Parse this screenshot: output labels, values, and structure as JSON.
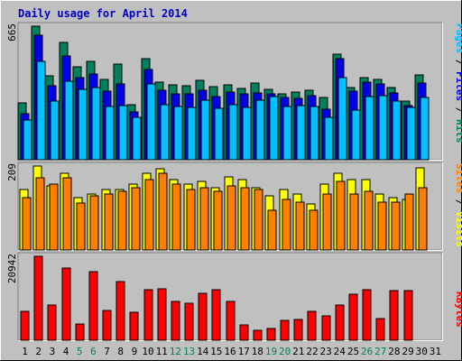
{
  "chart_data": {
    "type": "bar",
    "title": "Daily usage for April 2014",
    "categories": [
      "1",
      "2",
      "3",
      "4",
      "5",
      "6",
      "7",
      "8",
      "9",
      "10",
      "11",
      "12",
      "13",
      "14",
      "15",
      "16",
      "17",
      "18",
      "19",
      "20",
      "21",
      "22",
      "23",
      "24",
      "25",
      "26",
      "27",
      "28",
      "29",
      "30",
      "31"
    ],
    "weekend_days": [
      "5",
      "6",
      "12",
      "13",
      "19",
      "20",
      "26",
      "27"
    ],
    "colors": {
      "background": "#c0c0c0",
      "hits": "#00805c",
      "files": "#0000e6",
      "pages": "#00c0ff",
      "visits": "#ffff00",
      "sites": "#ff8000",
      "kbytes": "#ff0000",
      "title": "#0000c0",
      "weekday": "#000000",
      "weekend": "#00805c"
    },
    "panels": [
      {
        "id": "hits-files-pages",
        "ylim_label": "665",
        "ylim": [
          0,
          665
        ],
        "legend": [
          {
            "text": "Pages",
            "color": "#00c0ff"
          },
          {
            "text": " / ",
            "color": "#000000"
          },
          {
            "text": "Files",
            "color": "#0000e6"
          },
          {
            "text": " / ",
            "color": "#000000"
          },
          {
            "text": "Hits",
            "color": "#00805c"
          }
        ],
        "series": [
          {
            "name": "Hits",
            "color": "#00805c",
            "values": [
              282,
              665,
              419,
              586,
              462,
              488,
              400,
              475,
              273,
              503,
              386,
              375,
              367,
              397,
              365,
              372,
              355,
              384,
              352,
              330,
              337,
              345,
              310,
              526,
              360,
              410,
              400,
              360,
              290,
              421,
              null
            ]
          },
          {
            "name": "Files",
            "color": "#0000e6",
            "values": [
              227,
              622,
              370,
              516,
              410,
              428,
              343,
              377,
              236,
              451,
              345,
              326,
              326,
              348,
              316,
              337,
              330,
              331,
              330,
              311,
              304,
              318,
              250,
              505,
              343,
              386,
              377,
              331,
              270,
              383,
              null
            ]
          },
          {
            "name": "Pages",
            "color": "#00c0ff",
            "values": [
              197,
              490,
              292,
              390,
              352,
              361,
              263,
              269,
              212,
              378,
              276,
              266,
              259,
              298,
              257,
              274,
              259,
              298,
              315,
              263,
              270,
              265,
              210,
              410,
              248,
              316,
              320,
              292,
              260,
              310,
              null
            ]
          }
        ]
      },
      {
        "id": "visits-sites",
        "ylim_label": "209",
        "ylim": [
          0,
          209
        ],
        "legend": [
          {
            "text": "Sites",
            "color": "#ff8000"
          },
          {
            "text": " / ",
            "color": "#000000"
          },
          {
            "text": "Visits",
            "color": "#ffff00"
          }
        ],
        "series": [
          {
            "name": "Visits",
            "color": "#ffff00",
            "values": [
              150,
              209,
              160,
              190,
              130,
              140,
              150,
              150,
              165,
              190,
              203,
              175,
              165,
              170,
              155,
              182,
              175,
              155,
              135,
              150,
              140,
              115,
              165,
              190,
              175,
              175,
              140,
              130,
              125,
              205,
              null
            ]
          },
          {
            "name": "Sites",
            "color": "#ff8000",
            "values": [
              130,
              180,
              165,
              180,
              117,
              135,
              140,
              145,
              155,
              175,
              190,
              165,
              150,
              155,
              145,
              160,
              155,
              150,
              100,
              125,
              120,
              100,
              140,
              170,
              140,
              145,
              120,
              120,
              140,
              155,
              null
            ]
          }
        ]
      },
      {
        "id": "kbytes",
        "ylim_label": "20942",
        "ylim": [
          0,
          20942
        ],
        "legend": [
          {
            "text": "KBytes",
            "color": "#ff0000"
          }
        ],
        "series": [
          {
            "name": "KBytes",
            "color": "#ff0000",
            "values": [
              7300,
              20942,
              8800,
              18000,
              4100,
              17100,
              7400,
              14600,
              6900,
              12700,
              12900,
              9700,
              9200,
              11600,
              12500,
              9700,
              3800,
              2500,
              3000,
              4900,
              5200,
              7300,
              6000,
              8800,
              11400,
              12600,
              5500,
              12300,
              12300,
              null,
              null
            ]
          }
        ]
      }
    ]
  }
}
